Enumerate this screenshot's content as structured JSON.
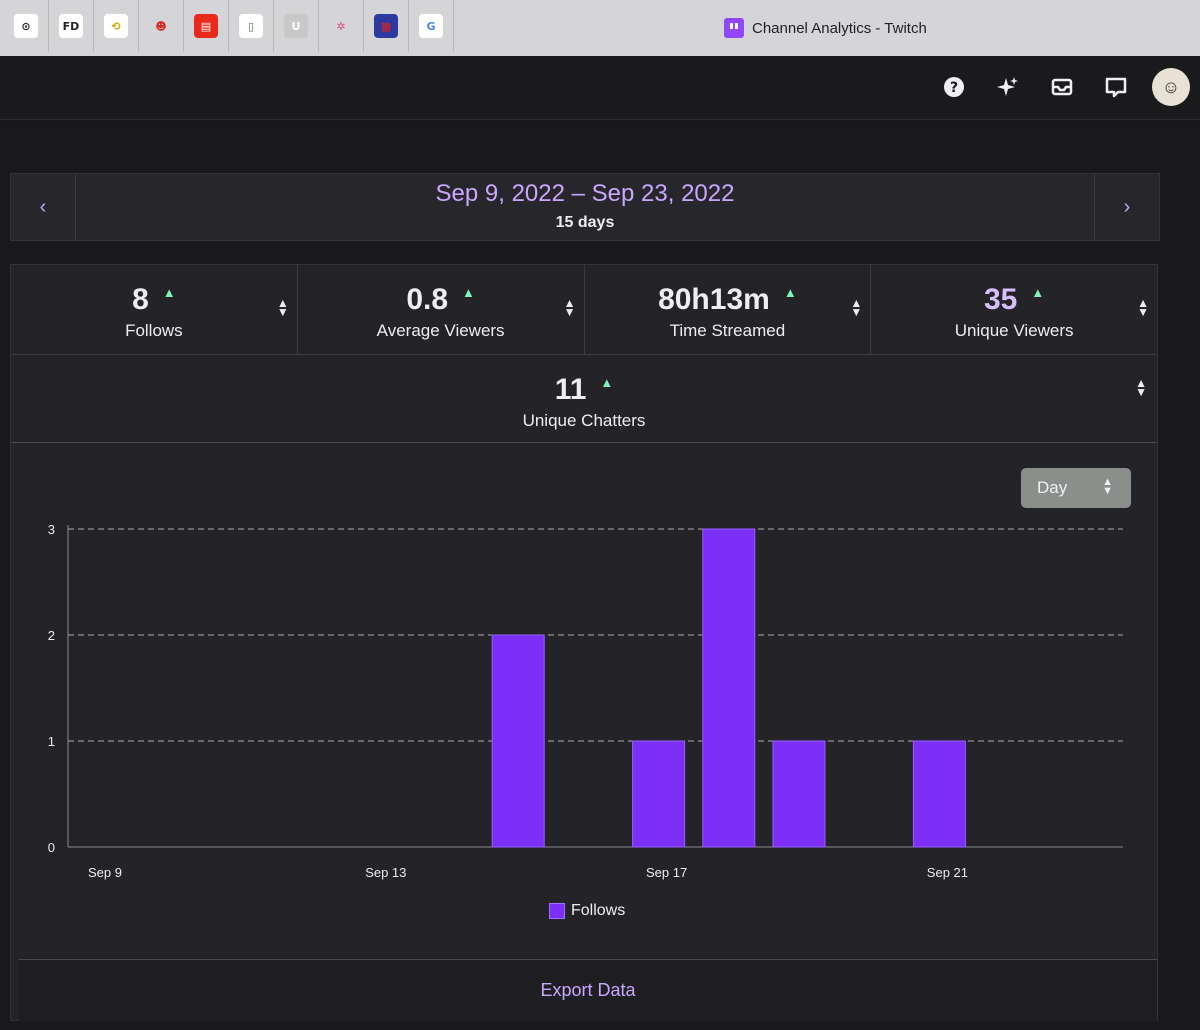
{
  "browser": {
    "pinned_tabs": [
      {
        "icon": "cursor-app-icon",
        "glyph": "⊙",
        "bg": "#ffffff",
        "fg": "#222222"
      },
      {
        "icon": "fd-icon",
        "glyph": "FD",
        "bg": "#ffffff",
        "fg": "#222222"
      },
      {
        "icon": "swirl-icon",
        "glyph": "⟲",
        "bg": "#ffffff",
        "fg": "#d4a400"
      },
      {
        "icon": "mascot-icon",
        "glyph": "☻",
        "bg": "#d5d5d8",
        "fg": "#d42b1e"
      },
      {
        "icon": "red-card-icon",
        "glyph": "▤",
        "bg": "#e8291c",
        "fg": "#ffffff"
      },
      {
        "icon": "book-icon",
        "glyph": "▯",
        "bg": "#ffffff",
        "fg": "#4a7d3a"
      },
      {
        "icon": "u-icon",
        "glyph": "U",
        "bg": "#c8c8c8",
        "fg": "#ffffff"
      },
      {
        "icon": "pinwheel-icon",
        "glyph": "✲",
        "bg": "#d5d5d8",
        "fg": "#e04b8a"
      },
      {
        "icon": "flag-icon",
        "glyph": "▦",
        "bg": "#2c3aa0",
        "fg": "#e02020"
      },
      {
        "icon": "google-icon",
        "glyph": "G",
        "bg": "#ffffff",
        "fg": "#4285f4"
      }
    ],
    "active_tab_title": "Channel Analytics - Twitch"
  },
  "nav": {
    "icons": [
      "help-icon",
      "sparkle-icon",
      "inbox-icon",
      "whispers-icon"
    ]
  },
  "date": {
    "range": "Sep 9, 2022 – Sep 23, 2022",
    "days": "15 days"
  },
  "stats": [
    {
      "value": "8",
      "label": "Follows",
      "selected": true,
      "trend": "up"
    },
    {
      "value": "0.8",
      "label": "Average Viewers",
      "selected": false,
      "trend": "up"
    },
    {
      "value": "80h13m",
      "label": "Time Streamed",
      "selected": false,
      "trend": "up"
    },
    {
      "value": "35",
      "label": "Unique Viewers",
      "selected": false,
      "trend": "up"
    }
  ],
  "stat_wide": {
    "value": "11",
    "label": "Unique Chatters",
    "trend": "up"
  },
  "granularity": {
    "selected": "Day"
  },
  "chart_data": {
    "type": "bar",
    "categories": [
      "Sep 9",
      "Sep 10",
      "Sep 11",
      "Sep 12",
      "Sep 13",
      "Sep 14",
      "Sep 15",
      "Sep 16",
      "Sep 17",
      "Sep 18",
      "Sep 19",
      "Sep 20",
      "Sep 21",
      "Sep 22",
      "Sep 23"
    ],
    "series": [
      {
        "name": "Follows",
        "values": [
          0,
          0,
          0,
          0,
          0,
          0,
          2,
          0,
          1,
          3,
          1,
          0,
          1,
          0,
          0
        ],
        "color": "#7b2ff7"
      }
    ],
    "x_tick_labels": [
      "Sep 9",
      "Sep 13",
      "Sep 17",
      "Sep 21"
    ],
    "y_ticks": [
      0,
      1,
      2,
      3
    ],
    "ylim": [
      0,
      3
    ],
    "grid": "dashed-horizontal",
    "legend": "bottom-center"
  },
  "export_label": "Export Data"
}
